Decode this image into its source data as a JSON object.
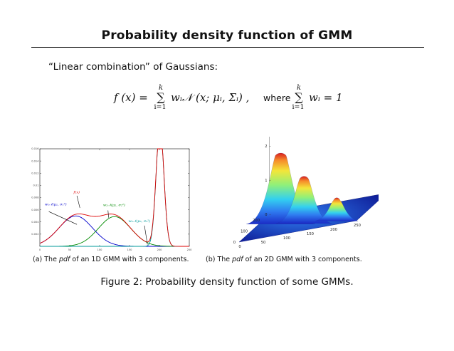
{
  "slide": {
    "title": "Probability density function of GMM",
    "intro": "“Linear combination” of Gaussians:",
    "formula": {
      "lhs": "f (x) =",
      "sum_top": "k",
      "sum_symbol": "∑",
      "sum_bottom": "i=1",
      "term": "wᵢ𝒩 (x; μᵢ, Σᵢ) ,",
      "where": "where",
      "rhs": "wᵢ = 1"
    },
    "caption_a_prefix": "(a) The ",
    "caption_a_em": "pdf",
    "caption_a_suffix": " of an 1D GMM with 3 components.",
    "caption_b_prefix": "(b) The ",
    "caption_b_em": "pdf",
    "caption_b_suffix": " of an 2D GMM with 3 components.",
    "figure_caption": "Figure 2: Probability density function of some GMMs."
  },
  "chart_data": [
    {
      "type": "line",
      "xlim": [
        0,
        250
      ],
      "ylim": [
        0,
        0.016
      ],
      "x_ticks": [
        "0",
        "50",
        "100",
        "150",
        "200",
        "250"
      ],
      "y_ticks": [
        "0.002",
        "0.004",
        "0.006",
        "0.008",
        "0.01",
        "0.012",
        "0.014",
        "0.016"
      ],
      "components": [
        {
          "name": "w₁𝒩(μ₁, σ₁²)",
          "color": "#0000cc",
          "mu": 60,
          "sigma": 28,
          "weight": 0.35
        },
        {
          "name": "w₂𝒩(μ₂, σ₂²)",
          "color": "#008a00",
          "mu": 125,
          "sigma": 27,
          "weight": 0.33
        },
        {
          "name": "w₃𝒩(μ₃, σ₃²)",
          "color": "#009a9a",
          "mu": 201,
          "sigma": 6.5,
          "weight": 0.32
        }
      ],
      "mixture": {
        "name": "f(x)",
        "color": "#dd0000"
      },
      "annotations": {
        "fx": "f(x)",
        "c1": "w₁𝒩(μ₁, σ₁²)",
        "c2": "w₂𝒩(μ₂, σ₂²)",
        "c3": "w₃𝒩(μ₃, σ₃²)"
      },
      "grid": false
    },
    {
      "type": "surface",
      "z_scale_label": "x 10⁻⁴",
      "z_ticks": [
        "0",
        "1",
        "2"
      ],
      "x_ticks": [
        "0",
        "50",
        "100",
        "150",
        "200",
        "250"
      ],
      "y_ticks": [
        "0",
        "100",
        "200"
      ],
      "peaks": [
        {
          "x": 50,
          "y": 150,
          "height": 2.0
        },
        {
          "x": 110,
          "y": 110,
          "height": 1.3
        },
        {
          "x": 190,
          "y": 70,
          "height": 0.6
        }
      ]
    }
  ]
}
